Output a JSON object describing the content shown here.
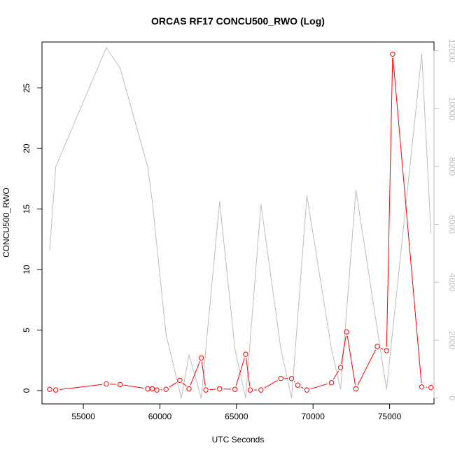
{
  "chart_data": {
    "type": "line",
    "title": "ORCAS RF17 CONCU500_RWO (Log)",
    "xlabel": "UTC Seconds",
    "ylabel": "CONCU500_RWO",
    "y2label": "",
    "xlim": [
      52300,
      77900
    ],
    "ylim": [
      -1.1,
      28.8
    ],
    "y2lim": [
      -200,
      12300
    ],
    "x_ticks": [
      55000,
      60000,
      65000,
      70000,
      75000
    ],
    "y_ticks": [
      0,
      5,
      10,
      15,
      20,
      25
    ],
    "y2_ticks": [
      0,
      2000,
      4000,
      6000,
      8000,
      10000,
      12000
    ],
    "grid": false,
    "legend": "none",
    "series": [
      {
        "axis": "left",
        "color": "#ff0000",
        "marker": "circle-open",
        "x": [
          52800,
          53200,
          56500,
          57400,
          59200,
          59500,
          59800,
          60400,
          61300,
          61900,
          62700,
          63000,
          63900,
          64900,
          65600,
          65900,
          66600,
          67900,
          68600,
          69000,
          69600,
          71200,
          71800,
          72200,
          72800,
          74200,
          74800,
          75200,
          77100,
          77700
        ],
        "values": [
          0.1,
          0.05,
          0.55,
          0.5,
          0.15,
          0.15,
          0.05,
          0.1,
          0.85,
          0.15,
          2.7,
          0.05,
          0.15,
          0.1,
          3.0,
          0.05,
          0.05,
          1.0,
          1.0,
          0.45,
          0.05,
          0.65,
          1.9,
          4.85,
          0.15,
          3.65,
          3.3,
          27.8,
          0.3,
          0.25
        ]
      },
      {
        "axis": "right",
        "color": "#bebebe",
        "marker": "none",
        "x": [
          52800,
          53200,
          56500,
          57400,
          59200,
          59500,
          60400,
          61400,
          61900,
          62700,
          63900,
          64900,
          65600,
          66600,
          67900,
          68600,
          69600,
          71200,
          71800,
          72800,
          74800,
          77100,
          77700
        ],
        "values": [
          5100,
          8000,
          12100,
          11400,
          8000,
          6800,
          2200,
          0,
          1500,
          0,
          6800,
          1700,
          0,
          6700,
          1700,
          0,
          7000,
          1700,
          300,
          7200,
          300,
          11900,
          5700
        ]
      }
    ]
  }
}
